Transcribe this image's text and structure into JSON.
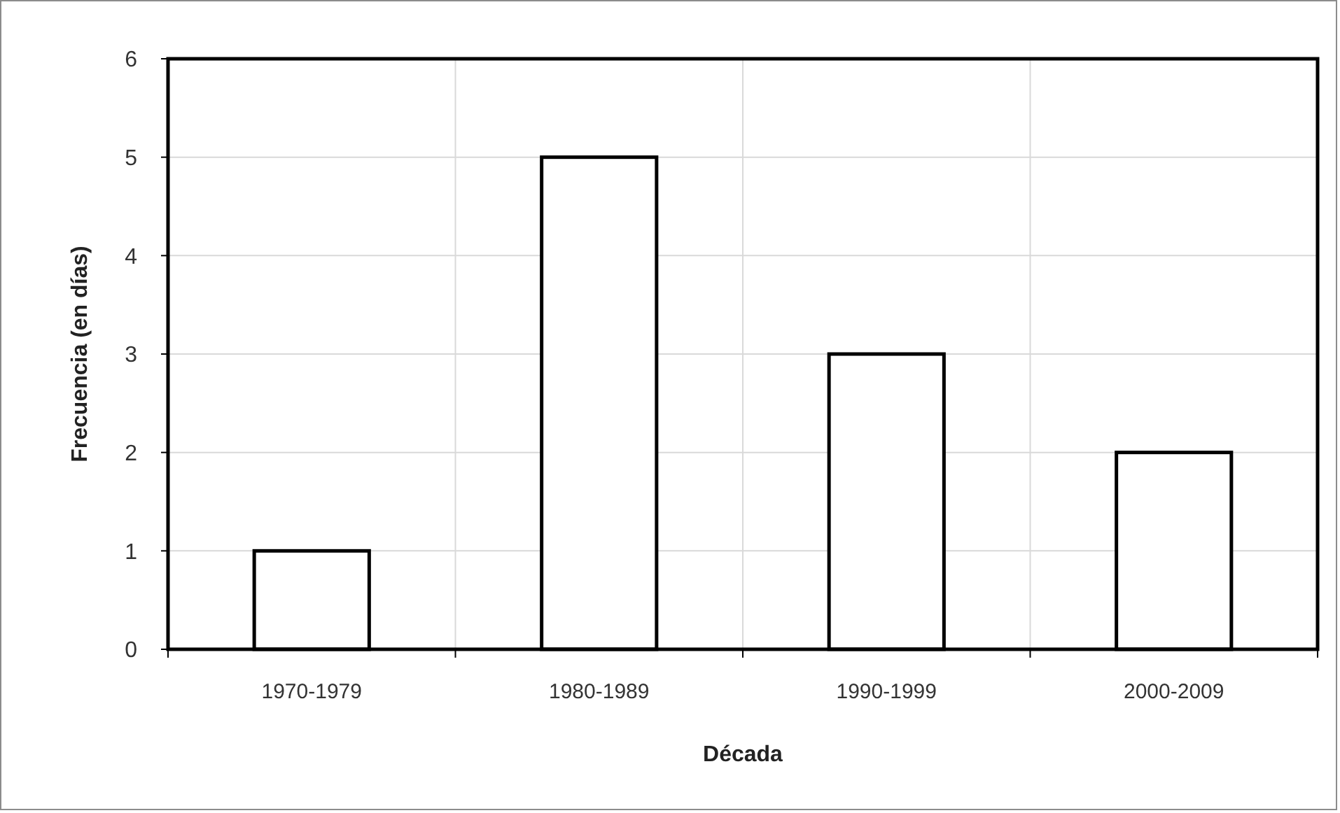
{
  "chart_data": {
    "type": "bar",
    "xlabel": "Década",
    "ylabel": "Frecuencia (en días)",
    "categories": [
      "1970-1979",
      "1980-1989",
      "1990-1999",
      "2000-2009"
    ],
    "values": [
      1,
      5,
      3,
      2
    ],
    "color": "#ffffff",
    "ylim": [
      0,
      6
    ],
    "yticks": [
      0,
      1,
      2,
      3,
      4,
      5,
      6
    ],
    "grid": true
  }
}
